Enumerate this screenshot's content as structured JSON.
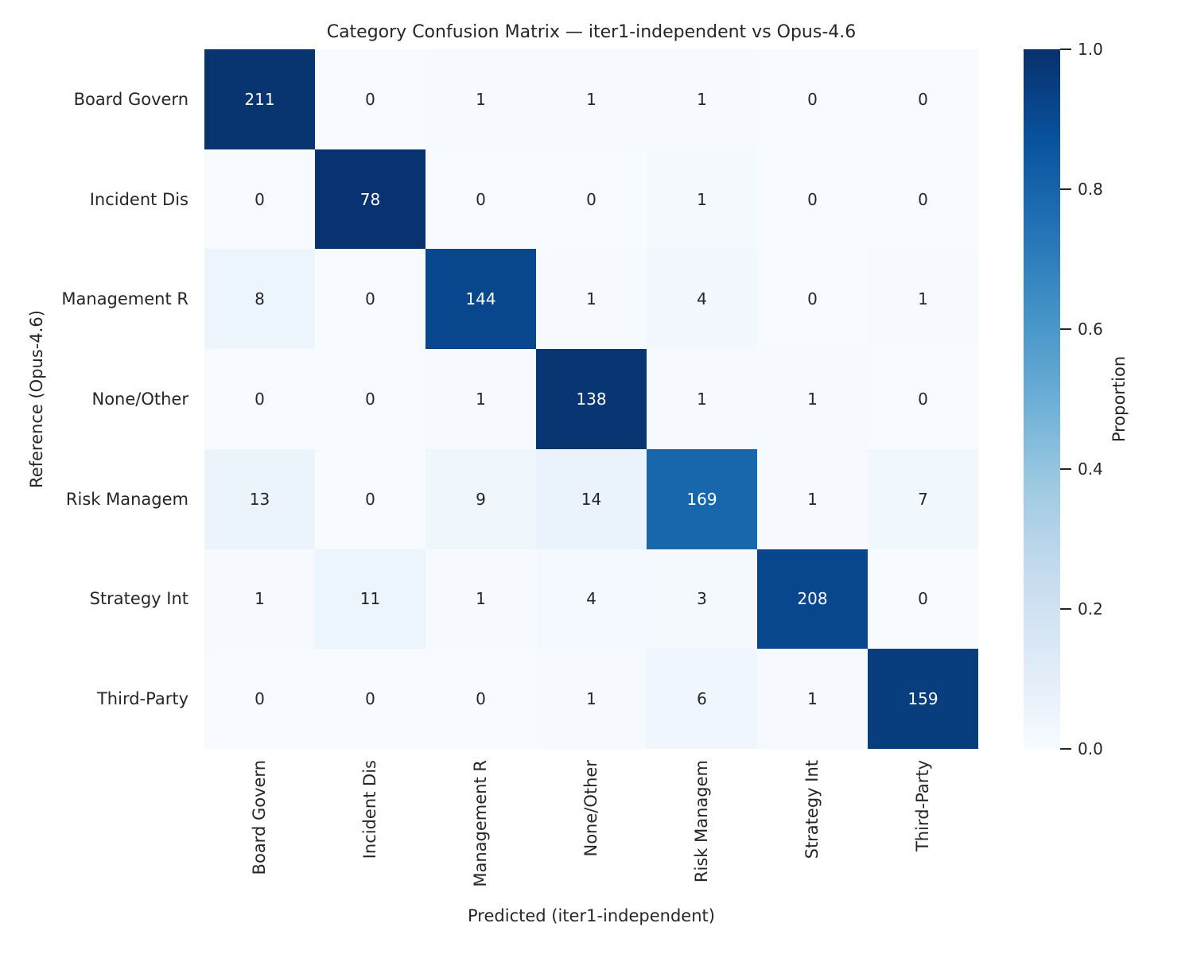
{
  "chart_data": {
    "type": "heatmap",
    "title": "Category Confusion Matrix — iter1-independent vs Opus-4.6",
    "xlabel": "Predicted (iter1-independent)",
    "ylabel": "Reference (Opus-4.6)",
    "x_categories": [
      "Board Govern",
      "Incident Dis",
      "Management R",
      "None/Other",
      "Risk Managem",
      "Strategy Int",
      "Third-Party"
    ],
    "y_categories": [
      "Board Govern",
      "Incident Dis",
      "Management R",
      "None/Other",
      "Risk Managem",
      "Strategy Int",
      "Third-Party"
    ],
    "matrix": [
      [
        211,
        0,
        1,
        1,
        1,
        0,
        0
      ],
      [
        0,
        78,
        0,
        0,
        1,
        0,
        0
      ],
      [
        8,
        0,
        144,
        1,
        4,
        0,
        1
      ],
      [
        0,
        0,
        1,
        138,
        1,
        1,
        0
      ],
      [
        13,
        0,
        9,
        14,
        169,
        1,
        7
      ],
      [
        1,
        11,
        1,
        4,
        3,
        208,
        0
      ],
      [
        0,
        0,
        0,
        1,
        6,
        1,
        159
      ]
    ],
    "normalization": "row-proportion",
    "grid": "off",
    "colorbar": {
      "label": "Proportion",
      "ticks": [
        "1.0",
        "0.8",
        "0.6",
        "0.4",
        "0.2",
        "0.0"
      ],
      "range": [
        0.0,
        1.0
      ],
      "position": "right"
    },
    "colormap": {
      "name": "Blues",
      "anchors": [
        "#f7fbff",
        "#deebf7",
        "#c6dbef",
        "#9ecae1",
        "#6baed6",
        "#4292c6",
        "#2171b5",
        "#08519c",
        "#08306b"
      ]
    },
    "text_colors": {
      "dark_cell": "#ffffff",
      "light_cell": "#262626"
    }
  }
}
